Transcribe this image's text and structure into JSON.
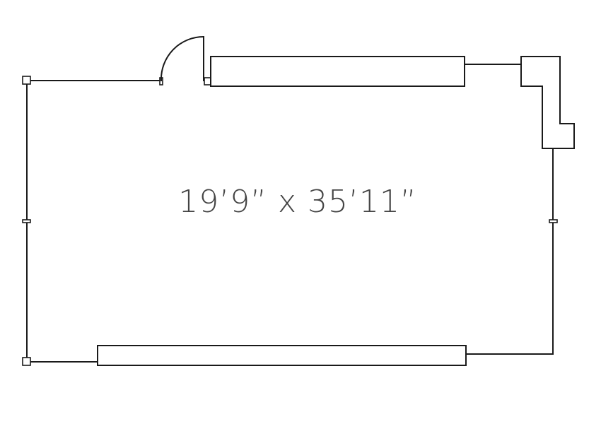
{
  "room": {
    "dimensions_label": "19’9” x 35’11”"
  },
  "colors": {
    "line": "#1a1a1a",
    "label": "#444444",
    "background": "#ffffff"
  }
}
